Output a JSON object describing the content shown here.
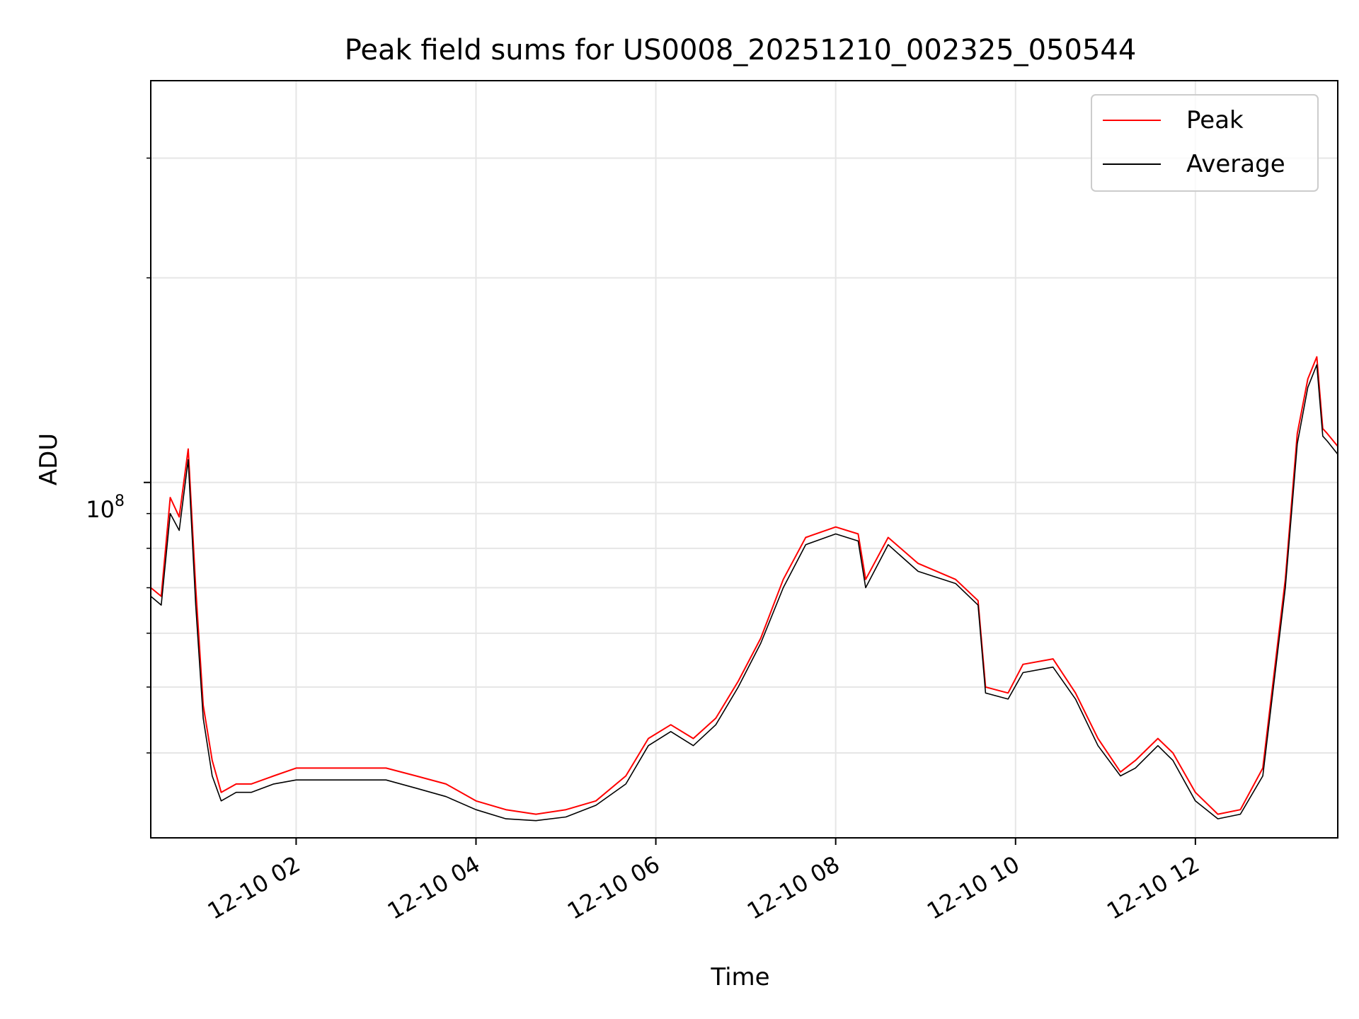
{
  "chart_data": {
    "type": "line",
    "title": "Peak field sums for US0008_20251210_002325_050544",
    "xlabel": "Time",
    "ylabel": "ADU",
    "yscale": "log",
    "grid": true,
    "legend_position": "top-right",
    "xlim": [
      "2025-12-10 00:23",
      "2025-12-10 13:35"
    ],
    "ylim": [
      30000000,
      390000000
    ],
    "x_ticks": [
      "12-10 02",
      "12-10 04",
      "12-10 06",
      "12-10 08",
      "12-10 10",
      "12-10 12"
    ],
    "x_tick_times": [
      "2025-12-10 02:00",
      "2025-12-10 04:00",
      "2025-12-10 06:00",
      "2025-12-10 08:00",
      "2025-12-10 10:00",
      "2025-12-10 12:00"
    ],
    "y_major_tick": {
      "value": 100000000,
      "base": "10",
      "exponent": "8"
    },
    "y_minor_ticks": [
      40000000,
      50000000,
      60000000,
      70000000,
      80000000,
      90000000,
      200000000,
      300000000
    ],
    "colors": {
      "Peak": "#ff0000",
      "Average": "#000000"
    },
    "series": [
      {
        "name": "Peak",
        "color": "#ff0000",
        "x": [
          "2025-12-10 00:23",
          "2025-12-10 00:30",
          "2025-12-10 00:36",
          "2025-12-10 00:42",
          "2025-12-10 00:48",
          "2025-12-10 00:53",
          "2025-12-10 00:58",
          "2025-12-10 01:04",
          "2025-12-10 01:10",
          "2025-12-10 01:20",
          "2025-12-10 01:30",
          "2025-12-10 01:45",
          "2025-12-10 02:00",
          "2025-12-10 02:30",
          "2025-12-10 03:00",
          "2025-12-10 03:20",
          "2025-12-10 03:40",
          "2025-12-10 04:00",
          "2025-12-10 04:20",
          "2025-12-10 04:40",
          "2025-12-10 05:00",
          "2025-12-10 05:20",
          "2025-12-10 05:40",
          "2025-12-10 05:55",
          "2025-12-10 06:10",
          "2025-12-10 06:25",
          "2025-12-10 06:40",
          "2025-12-10 06:55",
          "2025-12-10 07:10",
          "2025-12-10 07:25",
          "2025-12-10 07:40",
          "2025-12-10 08:00",
          "2025-12-10 08:15",
          "2025-12-10 08:20",
          "2025-12-10 08:35",
          "2025-12-10 08:55",
          "2025-12-10 09:20",
          "2025-12-10 09:35",
          "2025-12-10 09:40",
          "2025-12-10 09:55",
          "2025-12-10 10:05",
          "2025-12-10 10:25",
          "2025-12-10 10:40",
          "2025-12-10 10:55",
          "2025-12-10 11:10",
          "2025-12-10 11:20",
          "2025-12-10 11:35",
          "2025-12-10 11:45",
          "2025-12-10 12:00",
          "2025-12-10 12:15",
          "2025-12-10 12:30",
          "2025-12-10 12:45",
          "2025-12-10 13:00",
          "2025-12-10 13:08",
          "2025-12-10 13:15",
          "2025-12-10 13:21",
          "2025-12-10 13:25",
          "2025-12-10 13:28",
          "2025-12-10 13:35"
        ],
        "values": [
          70000000,
          68000000,
          95000000,
          89000000,
          112000000,
          70000000,
          47000000,
          39000000,
          35000000,
          36000000,
          36000000,
          37000000,
          38000000,
          38000000,
          38000000,
          37000000,
          36000000,
          34000000,
          33000000,
          32500000,
          33000000,
          34000000,
          37000000,
          42000000,
          44000000,
          42000000,
          45000000,
          51000000,
          59000000,
          72000000,
          83000000,
          86000000,
          84000000,
          72000000,
          83000000,
          76000000,
          72000000,
          67000000,
          50000000,
          49000000,
          54000000,
          55000000,
          49000000,
          42000000,
          37500000,
          39000000,
          42000000,
          40000000,
          35000000,
          32500000,
          33000000,
          38000000,
          72000000,
          118000000,
          142000000,
          153000000,
          120000000,
          118000000,
          113000000
        ]
      },
      {
        "name": "Average",
        "color": "#000000",
        "x": [
          "2025-12-10 00:23",
          "2025-12-10 00:30",
          "2025-12-10 00:36",
          "2025-12-10 00:42",
          "2025-12-10 00:48",
          "2025-12-10 00:53",
          "2025-12-10 00:58",
          "2025-12-10 01:04",
          "2025-12-10 01:10",
          "2025-12-10 01:20",
          "2025-12-10 01:30",
          "2025-12-10 01:45",
          "2025-12-10 02:00",
          "2025-12-10 02:30",
          "2025-12-10 03:00",
          "2025-12-10 03:20",
          "2025-12-10 03:40",
          "2025-12-10 04:00",
          "2025-12-10 04:20",
          "2025-12-10 04:40",
          "2025-12-10 05:00",
          "2025-12-10 05:20",
          "2025-12-10 05:40",
          "2025-12-10 05:55",
          "2025-12-10 06:10",
          "2025-12-10 06:25",
          "2025-12-10 06:40",
          "2025-12-10 06:55",
          "2025-12-10 07:10",
          "2025-12-10 07:25",
          "2025-12-10 07:40",
          "2025-12-10 08:00",
          "2025-12-10 08:15",
          "2025-12-10 08:20",
          "2025-12-10 08:35",
          "2025-12-10 08:55",
          "2025-12-10 09:20",
          "2025-12-10 09:35",
          "2025-12-10 09:40",
          "2025-12-10 09:55",
          "2025-12-10 10:05",
          "2025-12-10 10:25",
          "2025-12-10 10:40",
          "2025-12-10 10:55",
          "2025-12-10 11:10",
          "2025-12-10 11:20",
          "2025-12-10 11:35",
          "2025-12-10 11:45",
          "2025-12-10 12:00",
          "2025-12-10 12:15",
          "2025-12-10 12:30",
          "2025-12-10 12:45",
          "2025-12-10 13:00",
          "2025-12-10 13:08",
          "2025-12-10 13:15",
          "2025-12-10 13:21",
          "2025-12-10 13:25",
          "2025-12-10 13:28",
          "2025-12-10 13:35"
        ],
        "values": [
          68000000,
          66000000,
          90000000,
          85000000,
          108000000,
          66000000,
          45000000,
          37000000,
          34000000,
          35000000,
          35000000,
          36000000,
          36500000,
          36500000,
          36500000,
          35500000,
          34500000,
          33000000,
          32000000,
          31800000,
          32200000,
          33500000,
          36000000,
          41000000,
          43000000,
          41000000,
          44000000,
          50000000,
          58000000,
          70000000,
          81000000,
          84000000,
          82000000,
          70000000,
          81000000,
          74000000,
          71000000,
          66000000,
          49000000,
          48000000,
          52500000,
          53500000,
          48000000,
          41000000,
          37000000,
          38000000,
          41000000,
          39000000,
          34000000,
          32000000,
          32500000,
          37000000,
          70000000,
          114000000,
          138000000,
          149000000,
          117000000,
          115000000,
          110000000
        ]
      }
    ]
  }
}
